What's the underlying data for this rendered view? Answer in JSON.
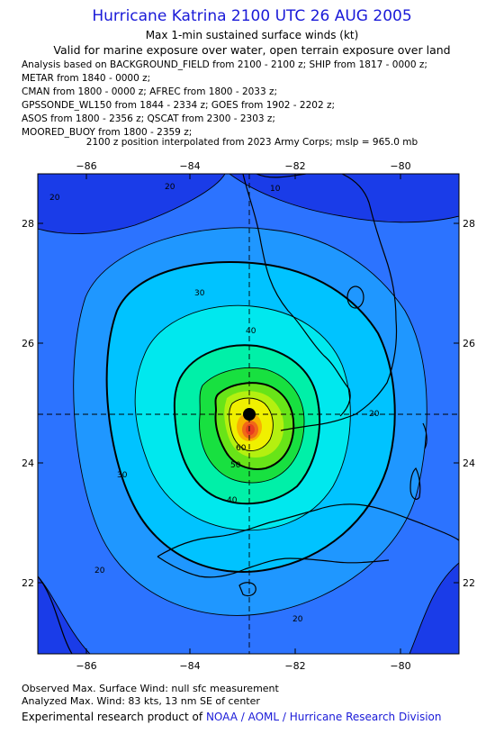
{
  "header": {
    "title": "Hurricane Katrina 2100 UTC 26 AUG 2005",
    "subtitle": "Max 1-min sustained surface winds (kt)",
    "valid_for": "Valid for marine exposure over water, open terrain exposure over land"
  },
  "sources": [
    "Analysis based on  BACKGROUND_FIELD from 2100 - 2100 z;  SHIP from 1817 - 0000 z;",
    "METAR from 1840 - 0000 z;",
    "CMAN from 1800 - 0000 z;  AFREC from 1800 - 2033 z;",
    "GPSSONDE_WL150 from 1844 - 2334 z;  GOES from 1902 - 2202 z;",
    "ASOS from 1800 - 2356 z;  QSCAT from 2300 - 2303 z;",
    "MOORED_BUOY from 1800 - 2359 z;"
  ],
  "interpolation_note": "2100 z position interpolated from 2023 Army Corps; mslp = 965.0 mb",
  "map": {
    "lon_ticks": [
      "−86",
      "−84",
      "−82",
      "−80"
    ],
    "lat_ticks": [
      "28",
      "26",
      "24",
      "22"
    ],
    "contour_labels": [
      "10",
      "20",
      "20",
      "20",
      "20",
      "20",
      "30",
      "30",
      "40",
      "40",
      "50",
      "60"
    ],
    "center_position": {
      "lon": -83.0,
      "lat": 24.8
    },
    "max_wind_kt": 83,
    "colors": {
      "frame": "#000000",
      "band_10": "#1a3ce8",
      "band_20": "#2c73ff",
      "band_25": "#1f97ff",
      "band_30": "#00c3ff",
      "band_35": "#00e8ee",
      "band_40": "#00f0a8",
      "band_45": "#18e040",
      "band_50": "#68e418",
      "band_55": "#b4f010",
      "band_60": "#f0f000",
      "band_70": "#f8b000",
      "band_80": "#f06818",
      "band_85": "#e83c20"
    }
  },
  "footer": {
    "observed": "Observed Max. Surface Wind: null sfc measurement",
    "analyzed": "Analyzed Max. Wind: 83 kts, 13 nm SE of center",
    "credit_prefix": "Experimental research product of",
    "credit_org": "NOAA / AOML / Hurricane Research Division"
  }
}
